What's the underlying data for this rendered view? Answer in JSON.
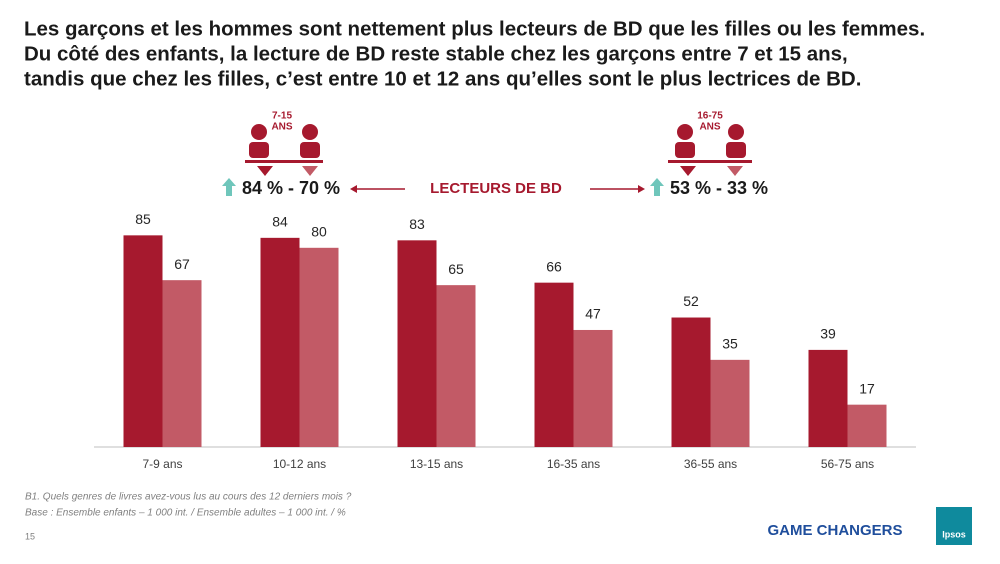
{
  "chart_data": {
    "type": "bar",
    "title": [
      "Les garçons et les hommes sont nettement plus lecteurs de BD que les filles ou les femmes.",
      "Du côté des enfants, la lecture de BD reste stable chez les garçons entre 7 et 15 ans,",
      "tandis que chez les filles, c’est entre 10 et 12 ans qu’elles sont le plus lectrices de BD."
    ],
    "categories": [
      "7-9 ans",
      "10-12 ans",
      "13-15 ans",
      "16-35 ans",
      "36-55 ans",
      "56-75 ans"
    ],
    "series": [
      {
        "color": "#a6192e",
        "values": [
          85,
          84,
          83,
          66,
          52,
          39
        ]
      },
      {
        "color": "#c25a66",
        "values": [
          67,
          80,
          65,
          47,
          35,
          17
        ]
      }
    ],
    "ylim": [
      0,
      100
    ],
    "annotations": [
      "7-15",
      "ANS",
      "84 % - 70 %",
      "LECTEURS DE BD",
      "16-75",
      "ANS",
      "53 % - 33 %"
    ]
  },
  "footer": {
    "notes": [
      "B1. Quels genres de livres avez-vous lus au cours des 12 derniers mois ?",
      "Base : Ensemble enfants – 1 000 int. / Ensemble adultes – 1 000 int. / %"
    ],
    "page_number": "15",
    "brand": "GAME CHANGERS",
    "logo": "Ipsos"
  }
}
